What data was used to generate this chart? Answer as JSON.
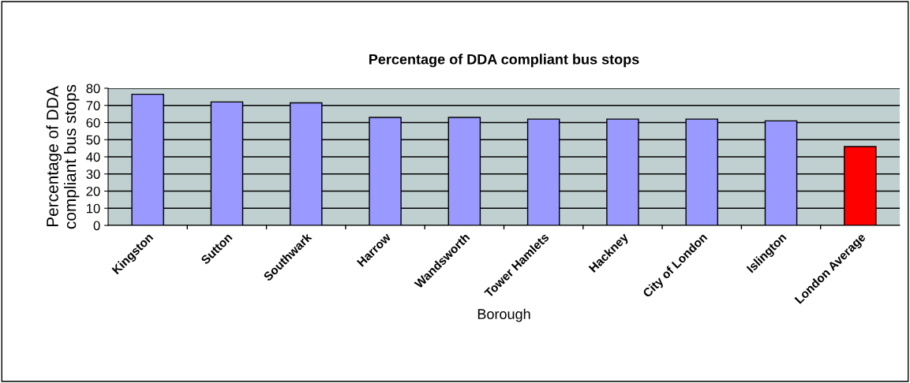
{
  "chart_data": {
    "type": "bar",
    "title": "Percentage of DDA compliant bus stops",
    "xlabel": "Borough",
    "ylabel": "Percentage of DDA\ncompliant bus stops",
    "categories": [
      "Kingston",
      "Sutton",
      "Southwark",
      "Harrow",
      "Wandsworth",
      "Tower Hamlets",
      "Hackney",
      "City of London",
      "Islington",
      "London Average"
    ],
    "values": [
      76.5,
      72,
      71.5,
      63,
      63,
      62,
      62,
      62,
      61,
      46
    ],
    "colors": [
      "#9999ff",
      "#9999ff",
      "#9999ff",
      "#9999ff",
      "#9999ff",
      "#9999ff",
      "#9999ff",
      "#9999ff",
      "#9999ff",
      "#ff0000"
    ],
    "ylim": [
      0,
      80
    ],
    "yticks": [
      0,
      10,
      20,
      30,
      40,
      50,
      60,
      70,
      80
    ],
    "grid": "y",
    "legend": false
  }
}
